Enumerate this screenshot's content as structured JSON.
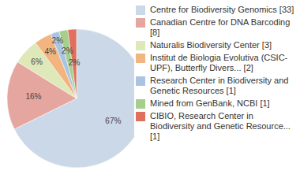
{
  "chart_data": {
    "type": "pie",
    "categories": [
      "Centre for Biodiversity Genomics [33]",
      "Canadian Centre for DNA Barcoding [8]",
      "Naturalis Biodiversity Center [3]",
      "Institut de Biologia Evolutiva (CSIC-UPF), Butterfly Divers... [2]",
      "Research Center in Biodiversity and Genetic Resources [1]",
      "Mined from GenBank, NCBI [1]",
      "CIBIO, Research Center in Biodiversity and Genetic Resource... [1]"
    ],
    "values": [
      67,
      16,
      6,
      4,
      2,
      2,
      2
    ],
    "value_labels": [
      "67%",
      "16%",
      "6%",
      "4%",
      "2%",
      "2%",
      "2%"
    ],
    "colors": [
      "#cbd8e8",
      "#e5a6a0",
      "#dfe8b8",
      "#f2b580",
      "#a9c4e2",
      "#a6cf8c",
      "#e0705e"
    ],
    "data_labels": true,
    "legend": "right"
  }
}
